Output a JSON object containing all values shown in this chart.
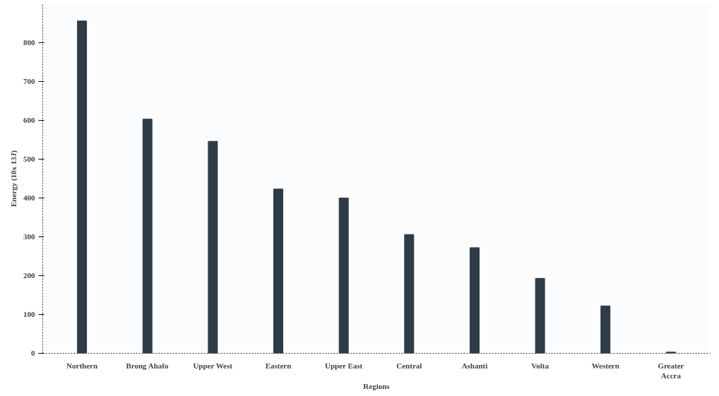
{
  "chart_data": {
    "type": "bar",
    "xlabel": "Regions",
    "ylabel": "Energy (10x 13J)",
    "categories": [
      "Northern",
      "Brong Ahafo",
      "Upper West",
      "Eastern",
      "Upper East",
      "Central",
      "Ashanti",
      "Volta",
      "Western",
      "Greater\nAccra"
    ],
    "values": [
      856,
      603,
      546,
      423,
      400,
      306,
      272,
      193,
      122,
      3
    ],
    "color": "#2f3b46",
    "ylim": [
      0,
      900
    ],
    "yticks": [
      0,
      100,
      200,
      300,
      400,
      500,
      600,
      700,
      800
    ],
    "grid": false
  }
}
